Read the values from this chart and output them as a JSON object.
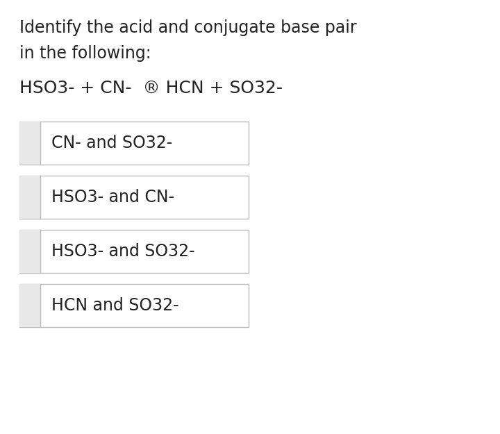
{
  "title_line1": "Identify the acid and conjugate base pair",
  "title_line2": "in the following:",
  "equation": "HSO3- + CN-  ® HCN + SO32-",
  "options": [
    "CN- and SO32-",
    "HSO3- and CN-",
    "HSO3- and SO32-",
    "HCN and SO32-"
  ],
  "bg_color": "#ffffff",
  "text_color": "#222222",
  "box_border_color": "#bbbbbb",
  "box_fill_color": "#ffffff",
  "left_panel_color": "#e8e8e8",
  "title_fontsize": 17,
  "eq_fontsize": 18,
  "option_fontsize": 17,
  "fig_width": 7.2,
  "fig_height": 6.25
}
